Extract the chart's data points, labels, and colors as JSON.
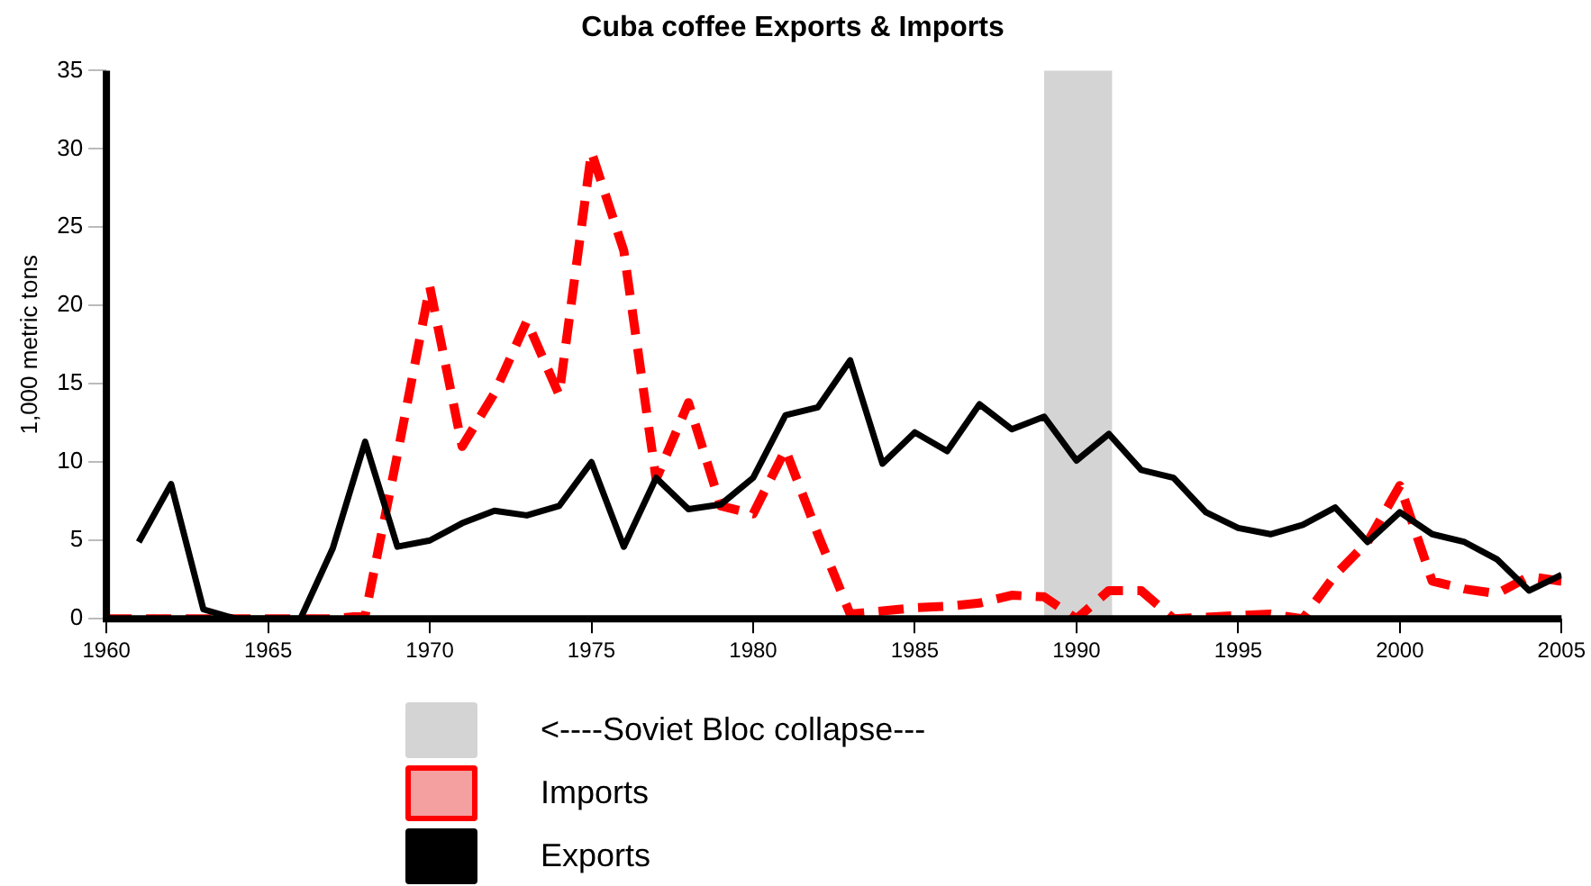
{
  "chart_data": {
    "type": "line",
    "title": "Cuba coffee Exports & Imports",
    "ylabel": "1,000 metric tons",
    "x": [
      1960,
      1961,
      1962,
      1963,
      1964,
      1965,
      1966,
      1967,
      1968,
      1969,
      1970,
      1971,
      1972,
      1973,
      1974,
      1975,
      1976,
      1977,
      1978,
      1979,
      1980,
      1981,
      1982,
      1983,
      1984,
      1985,
      1986,
      1987,
      1988,
      1989,
      1990,
      1991,
      1992,
      1993,
      1994,
      1995,
      1996,
      1997,
      1998,
      1999,
      2000,
      2001,
      2002,
      2003,
      2004,
      2005
    ],
    "series": [
      {
        "name": "Imports",
        "color": "#ff0000",
        "line_style": "dashed",
        "values": [
          0,
          0,
          0,
          0,
          0,
          0,
          0,
          0,
          0.2,
          10.5,
          21.2,
          11.0,
          14.4,
          19.0,
          14.3,
          29.8,
          23.5,
          8.9,
          13.8,
          7.2,
          6.7,
          10.8,
          5.4,
          0.3,
          0.5,
          0.7,
          0.8,
          1.0,
          1.5,
          1.4,
          0,
          1.8,
          1.8,
          0,
          0.1,
          0.2,
          0.3,
          0,
          2.8,
          4.9,
          8.5,
          2.4,
          1.9,
          1.6,
          2.7,
          2.4
        ]
      },
      {
        "name": "Exports",
        "color": "#000000",
        "line_style": "solid",
        "values": [
          null,
          4.9,
          8.6,
          0.6,
          0,
          0,
          0,
          4.5,
          11.3,
          4.6,
          5.0,
          6.1,
          6.9,
          6.6,
          7.2,
          10.0,
          4.6,
          9.0,
          7.0,
          7.3,
          9.0,
          13.0,
          13.5,
          16.5,
          9.9,
          11.9,
          10.7,
          13.7,
          12.1,
          12.9,
          10.1,
          11.8,
          9.5,
          9.0,
          6.8,
          5.8,
          5.4,
          6.0,
          7.1,
          4.9,
          6.8,
          5.4,
          4.9,
          3.8,
          1.8,
          2.8
        ]
      }
    ],
    "bands": [
      {
        "axis": "x",
        "from": 1989,
        "to": 1991.1,
        "label": "<----Soviet Bloc collapse---",
        "color": "#d4d4d4"
      }
    ],
    "xlim": [
      1960,
      2005
    ],
    "xticks": [
      1960,
      1965,
      1970,
      1975,
      1980,
      1985,
      1990,
      1995,
      2000,
      2005
    ],
    "ylim": [
      0,
      35
    ],
    "yticks": [
      0,
      5,
      10,
      15,
      20,
      25,
      30,
      35
    ],
    "grid": false,
    "legend": "bottom",
    "marker": "none"
  }
}
